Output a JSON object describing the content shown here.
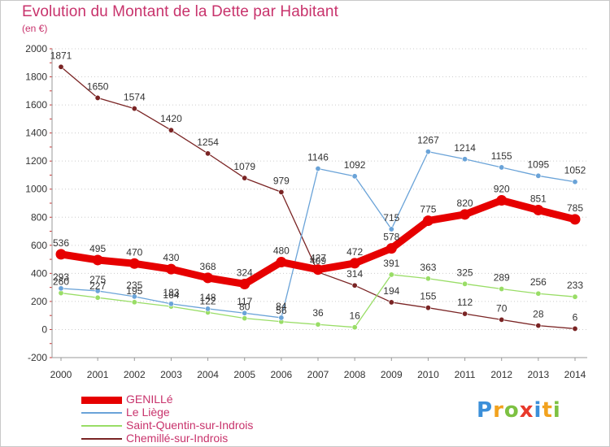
{
  "chart_data": {
    "type": "line",
    "title": "Evolution du Montant de la Dette par Habitant",
    "subtitle": "(en €)",
    "x": [
      2000,
      2001,
      2002,
      2003,
      2004,
      2005,
      2006,
      2007,
      2008,
      2009,
      2010,
      2011,
      2012,
      2013,
      2014
    ],
    "ylim": [
      -200,
      2000
    ],
    "yticks": [
      -200,
      0,
      200,
      400,
      600,
      800,
      1000,
      1200,
      1400,
      1600,
      1800,
      2000
    ],
    "grid": "dotted horizontal",
    "legend_position": "bottom-left",
    "series": [
      {
        "name": "GENILLé",
        "color": "#e60000",
        "emphasis": true,
        "values": [
          536,
          495,
          470,
          430,
          368,
          324,
          480,
          427,
          472,
          578,
          775,
          820,
          920,
          851,
          785
        ]
      },
      {
        "name": "Le Liège",
        "color": "#6aa3d8",
        "emphasis": false,
        "values": [
          293,
          275,
          235,
          183,
          148,
          117,
          84,
          1146,
          1092,
          715,
          1267,
          1214,
          1155,
          1095,
          1052
        ]
      },
      {
        "name": "Saint-Quentin-sur-Indrois",
        "color": "#99dd66",
        "emphasis": false,
        "values": [
          260,
          227,
          195,
          164,
          122,
          80,
          56,
          36,
          16,
          391,
          363,
          325,
          289,
          256,
          233
        ]
      },
      {
        "name": "Chemillé-sur-Indrois",
        "color": "#7a2424",
        "emphasis": false,
        "values": [
          1871,
          1650,
          1574,
          1420,
          1254,
          1079,
          979,
          409,
          314,
          194,
          155,
          112,
          70,
          28,
          6
        ]
      }
    ]
  },
  "logo": {
    "letters": [
      "P",
      "r",
      "o",
      "x",
      "i",
      "t",
      "i"
    ],
    "colors": [
      "#3b8fd9",
      "#f2a21e",
      "#7dc142",
      "#e8392b",
      "#3b8fd9",
      "#f2a21e",
      "#7dc142"
    ]
  }
}
